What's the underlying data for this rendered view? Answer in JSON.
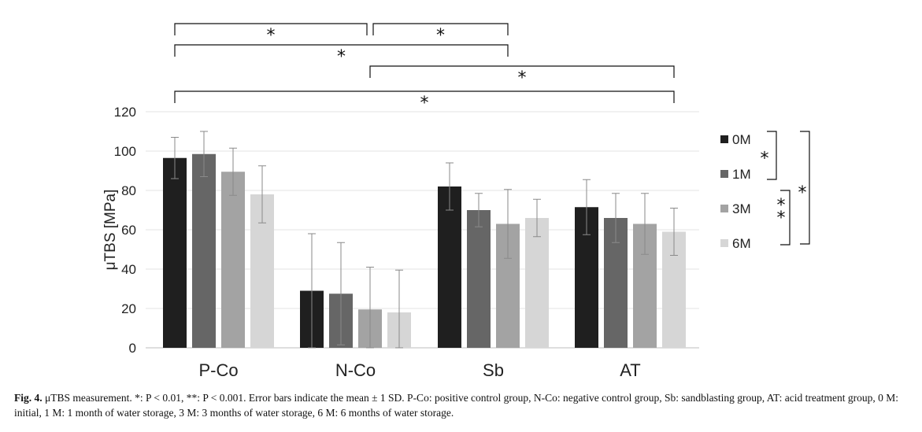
{
  "chart_data": {
    "type": "bar",
    "ylabel": "μTBS [MPa]",
    "ylim": [
      0,
      120
    ],
    "yticks": [
      0,
      20,
      40,
      60,
      80,
      100,
      120
    ],
    "grid": true,
    "legend_position": "right",
    "categories": [
      "P-Co",
      "N-Co",
      "Sb",
      "AT"
    ],
    "series": [
      {
        "name": "0M",
        "color": "#1f1f1f",
        "values": [
          96.5,
          29,
          82,
          71.5
        ],
        "errors": [
          10.5,
          29,
          12,
          14
        ]
      },
      {
        "name": "1M",
        "color": "#666666",
        "values": [
          98.5,
          27.5,
          70,
          66
        ],
        "errors": [
          11.5,
          26,
          8.5,
          12.5
        ]
      },
      {
        "name": "3M",
        "color": "#a3a3a3",
        "values": [
          89.5,
          19.5,
          63,
          63
        ],
        "errors": [
          12,
          21.5,
          17.5,
          15.5
        ]
      },
      {
        "name": "6M",
        "color": "#d6d6d6",
        "values": [
          78,
          18,
          66,
          59
        ],
        "errors": [
          14.5,
          21.5,
          9.5,
          12
        ]
      }
    ],
    "annotations": {
      "top_brackets": [
        {
          "from": "P-Co 0M",
          "to": "N-Co 3M",
          "label": "*"
        },
        {
          "from": "N-Co 3M",
          "to": "Sb 3M",
          "label": "*"
        },
        {
          "from": "P-Co 0M",
          "to": "Sb 3M",
          "label": "*"
        },
        {
          "from": "N-Co 3M",
          "to": "AT 6M",
          "label": "*"
        },
        {
          "from": "P-Co 0M",
          "to": "AT 6M",
          "label": "*"
        }
      ],
      "legend_brackets": [
        {
          "from": "0M",
          "to": "1M",
          "label": "*"
        },
        {
          "from": "1M",
          "to": "6M",
          "label": "**"
        },
        {
          "from": "0M",
          "to": "6M",
          "label": "*"
        }
      ]
    }
  },
  "caption": {
    "label": "Fig. 4.",
    "text": " μTBS measurement. *: P < 0.01, **: P < 0.001. Error bars indicate the mean ± 1 SD. P-Co: positive control group, N-Co: negative control group, Sb: sandblasting group, AT: acid treatment group, 0 M: initial, 1 M: 1 month of water storage, 3 M: 3 months of water storage, 6 M: 6 months of water storage."
  }
}
